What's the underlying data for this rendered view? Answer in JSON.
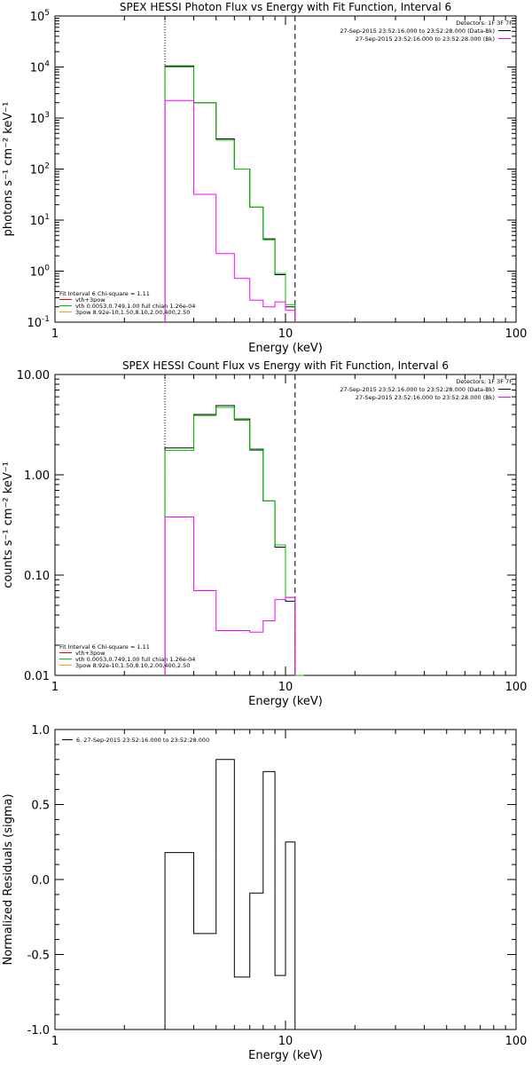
{
  "chart_data": [
    {
      "type": "step",
      "title": "SPEX HESSI Photon Flux vs Energy with Fit Function, Interval 6",
      "xlabel": "Energy (keV)",
      "ylabel": "photons s⁻¹ cm⁻² keV⁻¹",
      "xscale": "log",
      "yscale": "log",
      "xlim": [
        1,
        100
      ],
      "ylim": [
        0.1,
        100000
      ],
      "x_ticks": [
        {
          "v": 1,
          "label": "1"
        },
        {
          "v": 10,
          "label": "10"
        },
        {
          "v": 100,
          "label": "100"
        }
      ],
      "y_ticks": [
        {
          "v": 0.1,
          "base": "10",
          "exp": "-1"
        },
        {
          "v": 1,
          "base": "10",
          "exp": "0"
        },
        {
          "v": 10,
          "base": "10",
          "exp": "1"
        },
        {
          "v": 100,
          "base": "10",
          "exp": "2"
        },
        {
          "v": 1000,
          "base": "10",
          "exp": "3"
        },
        {
          "v": 10000,
          "base": "10",
          "exp": "4"
        },
        {
          "v": 100000,
          "base": "10",
          "exp": "5"
        }
      ],
      "bin_edges": [
        3,
        4,
        5,
        6,
        7,
        8,
        9,
        10,
        11
      ],
      "vlines": [
        {
          "x": 3,
          "style": "dotted"
        },
        {
          "x": 11,
          "style": "dashed"
        }
      ],
      "detectors_label": "Detectors: 1F 3F 7F",
      "legend_top": [
        {
          "text": "27-Sep-2015 23:52:16.000 to 23:52:28.000 (Data-Bk)",
          "color": "#000000"
        },
        {
          "text": "27-Sep-2015 23:52:16.000 to 23:52:28.000 (Bk)",
          "color": "#ff00ff"
        }
      ],
      "legend_bottom": {
        "header": "Fit Interval 6   Chi-square = 1.11",
        "items": [
          {
            "text": "vth+3pow",
            "color": "#ff0000"
          },
          {
            "text": "vth 0.0053,0.749,1.00  full chian 1.26e-04",
            "color": "#00c000"
          },
          {
            "text": "3pow 8.92e-10,1.50,8.10,2.00,400,2.50",
            "color": "#ffa000"
          }
        ]
      },
      "series": [
        {
          "color": "#000000",
          "values": [
            10500,
            2000,
            390,
            100,
            18,
            4.3,
            0.85,
            0.2
          ]
        },
        {
          "color": "#00c000",
          "values": [
            10000,
            2000,
            370,
            100,
            18,
            4.1,
            0.9,
            0.22
          ]
        },
        {
          "color": "#ff00ff",
          "values": [
            2200,
            32,
            2.2,
            0.72,
            0.27,
            0.2,
            0.25,
            0.17
          ]
        }
      ]
    },
    {
      "type": "step",
      "title": "SPEX HESSI Count Flux vs Energy with Fit Function, Interval 6",
      "xlabel": "Energy (keV)",
      "ylabel": "counts s⁻¹ cm⁻² keV⁻¹",
      "xscale": "log",
      "yscale": "log",
      "xlim": [
        1,
        100
      ],
      "ylim": [
        0.01,
        10
      ],
      "x_ticks": [
        {
          "v": 1,
          "label": "1"
        },
        {
          "v": 10,
          "label": "10"
        },
        {
          "v": 100,
          "label": "100"
        }
      ],
      "y_ticks": [
        {
          "v": 0.01,
          "label": "0.01"
        },
        {
          "v": 0.1,
          "label": "0.10"
        },
        {
          "v": 1,
          "label": "1.00"
        },
        {
          "v": 10,
          "label": "10.00"
        }
      ],
      "bin_edges": [
        3,
        4,
        5,
        6,
        7,
        8,
        9,
        10,
        11,
        12
      ],
      "vlines": [
        {
          "x": 3,
          "style": "dotted"
        },
        {
          "x": 11,
          "style": "dashed"
        }
      ],
      "detectors_label": "Detectors: 1F 3F 7F",
      "legend_top": [
        {
          "text": "27-Sep-2015 23:52:16.000 to 23:52:28.000 (Data-Bk)",
          "color": "#000000"
        },
        {
          "text": "27-Sep-2015 23:52:16.000 to 23:52:28.000 (Bk)",
          "color": "#ff00ff"
        }
      ],
      "legend_bottom": {
        "header": "Fit Interval 6   Chi-square = 1.11",
        "items": [
          {
            "text": "vth+3pow",
            "color": "#ff0000"
          },
          {
            "text": "vth 0.0053,0.749,1.00  full chian 1.26e-04",
            "color": "#00c000"
          },
          {
            "text": "3pow 8.92e-10,1.50,8.10,2.00,400,2.50",
            "color": "#ffa000"
          }
        ]
      },
      "series": [
        {
          "color": "#000000",
          "values": [
            1.85,
            4.0,
            4.9,
            3.6,
            1.8,
            0.55,
            0.19,
            0.055,
            null
          ]
        },
        {
          "color": "#00c000",
          "values": [
            1.75,
            3.9,
            4.7,
            3.5,
            1.75,
            0.55,
            0.2,
            0.06,
            0.01
          ]
        },
        {
          "color": "#ff00ff",
          "values": [
            0.38,
            0.07,
            0.028,
            0.028,
            0.027,
            0.035,
            0.057,
            0.06,
            null
          ]
        }
      ]
    },
    {
      "type": "step",
      "title": "",
      "xlabel": "Energy (keV)",
      "ylabel": "Normalized Residuals (sigma)",
      "xscale": "log",
      "yscale": "linear",
      "xlim": [
        1,
        100
      ],
      "ylim": [
        -1,
        1
      ],
      "x_ticks": [
        {
          "v": 1,
          "label": "1"
        },
        {
          "v": 10,
          "label": "10"
        },
        {
          "v": 100,
          "label": "100"
        }
      ],
      "y_ticks": [
        {
          "v": -1,
          "label": "-1.0"
        },
        {
          "v": -0.5,
          "label": "-0.5"
        },
        {
          "v": 0,
          "label": "0.0"
        },
        {
          "v": 0.5,
          "label": "0.5"
        },
        {
          "v": 1,
          "label": "1.0"
        }
      ],
      "bin_edges": [
        3,
        4,
        5,
        6,
        7,
        8,
        9,
        10,
        11
      ],
      "vlines": [],
      "legend_top_left": [
        {
          "text": "6. 27-Sep-2015 23:52:16.000 to 23:52:28.000",
          "color": "#000000"
        }
      ],
      "series": [
        {
          "color": "#000000",
          "values": [
            0.18,
            -0.36,
            0.8,
            -0.65,
            -0.09,
            0.72,
            -0.64,
            0.25
          ]
        }
      ]
    }
  ]
}
